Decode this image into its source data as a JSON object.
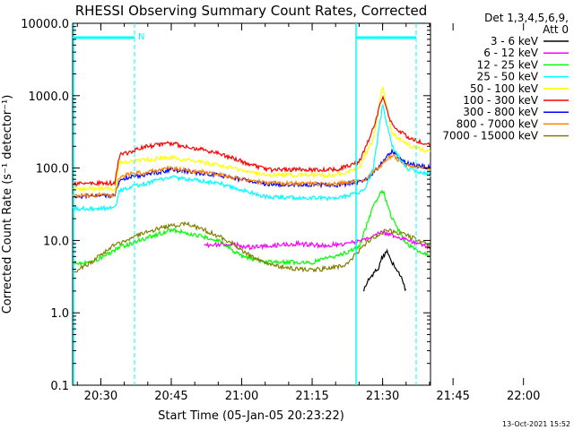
{
  "chart_data": {
    "type": "line",
    "title": "RHESSI Observing Summary Count Rates, Corrected",
    "xlabel": "Start Time (05-Jan-05 20:23:22)",
    "ylabel": "Corrected Count Rate (s⁻¹ detector⁻¹)",
    "yscale": "log",
    "ylim": [
      0.1,
      10000
    ],
    "xlim_minutes": [
      20.4,
      21.67
    ],
    "x_ticks": [
      {
        "label": "20:30",
        "value": 30
      },
      {
        "label": "20:45",
        "value": 45
      },
      {
        "label": "21:00",
        "value": 60
      },
      {
        "label": "21:15",
        "value": 75
      },
      {
        "label": "21:30",
        "value": 90
      },
      {
        "label": "21:45",
        "value": 105
      },
      {
        "label": "22:00",
        "value": 120
      }
    ],
    "y_ticks": [
      {
        "label": "0.1",
        "value": 0.1
      },
      {
        "label": "1.0",
        "value": 1
      },
      {
        "label": "10.0",
        "value": 10
      },
      {
        "label": "100.0",
        "value": 100
      },
      {
        "label": "1000.0",
        "value": 1000
      },
      {
        "label": "10000.0",
        "value": 10000
      }
    ],
    "legend_header": [
      "Det 1,3,4,5,6,9,",
      "Att 0"
    ],
    "legend_placement": "right",
    "series": [
      {
        "name": "3 - 6 keV",
        "color": "#000000"
      },
      {
        "name": "6 - 12 keV",
        "color": "#ff00ff"
      },
      {
        "name": "12 - 25 keV",
        "color": "#00ff00"
      },
      {
        "name": "25 - 50 keV",
        "color": "#00ffff"
      },
      {
        "name": "50 - 100 keV",
        "color": "#ffff00"
      },
      {
        "name": "100 - 300 keV",
        "color": "#ff0000"
      },
      {
        "name": "300 - 800 keV",
        "color": "#0000ff"
      },
      {
        "name": "800 - 7000 keV",
        "color": "#ff8000"
      },
      {
        "name": "7000 - 15000 keV",
        "color": "#808000"
      }
    ],
    "main_series": [
      {
        "color": "#ffff00",
        "points": [
          [
            20.4,
            52
          ],
          [
            33,
            52
          ],
          [
            34,
            120
          ],
          [
            45,
            140
          ],
          [
            55,
            110
          ],
          [
            65,
            80
          ],
          [
            80,
            80
          ],
          [
            85,
            100
          ],
          [
            88,
            250
          ],
          [
            90,
            1400
          ],
          [
            92,
            300
          ],
          [
            96,
            200
          ],
          [
            103,
            150
          ],
          [
            106,
            65
          ],
          [
            108,
            58
          ],
          [
            120,
            58
          ]
        ]
      },
      {
        "color": "#ff0000",
        "points": [
          [
            20.4,
            60
          ],
          [
            33,
            62
          ],
          [
            34,
            150
          ],
          [
            40,
            200
          ],
          [
            45,
            220
          ],
          [
            55,
            160
          ],
          [
            65,
            95
          ],
          [
            80,
            95
          ],
          [
            85,
            120
          ],
          [
            88,
            350
          ],
          [
            90,
            950
          ],
          [
            92,
            400
          ],
          [
            96,
            250
          ],
          [
            103,
            190
          ],
          [
            106,
            75
          ],
          [
            108,
            65
          ],
          [
            120,
            65
          ]
        ]
      },
      {
        "color": "#0000ff",
        "points": [
          [
            20.4,
            40
          ],
          [
            33,
            42
          ],
          [
            34,
            70
          ],
          [
            45,
            95
          ],
          [
            55,
            80
          ],
          [
            65,
            60
          ],
          [
            80,
            58
          ],
          [
            86,
            65
          ],
          [
            89,
            100
          ],
          [
            92,
            170
          ],
          [
            95,
            115
          ],
          [
            103,
            95
          ],
          [
            106,
            45
          ],
          [
            120,
            42
          ]
        ]
      },
      {
        "color": "#ff8000",
        "points": [
          [
            20.4,
            42
          ],
          [
            33,
            42
          ],
          [
            34,
            78
          ],
          [
            45,
            100
          ],
          [
            55,
            82
          ],
          [
            65,
            62
          ],
          [
            80,
            60
          ],
          [
            86,
            68
          ],
          [
            89,
            100
          ],
          [
            92,
            150
          ],
          [
            95,
            110
          ],
          [
            103,
            90
          ],
          [
            106,
            45
          ],
          [
            120,
            44
          ]
        ]
      },
      {
        "color": "#00ffff",
        "points": [
          [
            20.4,
            27
          ],
          [
            33,
            28
          ],
          [
            34,
            50
          ],
          [
            45,
            75
          ],
          [
            55,
            62
          ],
          [
            65,
            40
          ],
          [
            80,
            38
          ],
          [
            86,
            48
          ],
          [
            88,
            100
          ],
          [
            90,
            740
          ],
          [
            92,
            200
          ],
          [
            95,
            100
          ],
          [
            102,
            75
          ],
          [
            104,
            55
          ],
          [
            106,
            25
          ],
          [
            120,
            27
          ]
        ]
      },
      {
        "color": "#00ff00",
        "points": [
          [
            20.4,
            4.8
          ],
          [
            28,
            5
          ],
          [
            34,
            8
          ],
          [
            40,
            11
          ],
          [
            45,
            14
          ],
          [
            50,
            12
          ],
          [
            55,
            10
          ],
          [
            60,
            6
          ],
          [
            65,
            5
          ],
          [
            75,
            5
          ],
          [
            80,
            6
          ],
          [
            85,
            8
          ],
          [
            88,
            30
          ],
          [
            90,
            50
          ],
          [
            92,
            20
          ],
          [
            95,
            9
          ],
          [
            100,
            6
          ],
          [
            103,
            4
          ],
          [
            106,
            3.5
          ],
          [
            120,
            3.5
          ]
        ]
      },
      {
        "color": "#ff00ff",
        "points": [
          [
            52,
            8.5
          ],
          [
            57,
            9
          ],
          [
            62,
            8
          ],
          [
            67,
            8.5
          ],
          [
            72,
            9
          ],
          [
            77,
            8.5
          ],
          [
            82,
            9
          ],
          [
            86,
            10
          ],
          [
            89,
            13
          ],
          [
            92,
            12
          ],
          [
            96,
            10
          ],
          [
            100,
            8
          ]
        ]
      },
      {
        "color": "#808000",
        "points": [
          [
            20.4,
            3
          ],
          [
            24,
            3.5
          ],
          [
            28,
            5
          ],
          [
            32,
            8
          ],
          [
            38,
            12
          ],
          [
            43,
            15
          ],
          [
            48,
            17
          ],
          [
            52,
            14
          ],
          [
            57,
            10
          ],
          [
            62,
            6
          ],
          [
            67,
            4.5
          ],
          [
            72,
            4
          ],
          [
            77,
            4
          ],
          [
            82,
            4.5
          ],
          [
            87,
            10
          ],
          [
            91,
            14
          ],
          [
            95,
            12
          ],
          [
            99,
            9
          ],
          [
            102,
            6
          ],
          [
            105,
            4
          ],
          [
            110,
            3.8
          ],
          [
            120,
            3.8
          ]
        ]
      },
      {
        "color": "#000000",
        "points": [
          [
            86,
            2
          ],
          [
            87,
            3
          ],
          [
            89,
            4
          ],
          [
            90,
            6
          ],
          [
            91,
            7
          ],
          [
            92,
            5
          ],
          [
            93,
            4
          ],
          [
            94,
            3
          ],
          [
            95,
            2
          ]
        ]
      }
    ],
    "flag_marker_label": "N",
    "axis_color": "#000000",
    "marker_color": "#00ffff",
    "footer_timestamp": "13-Oct-2021 15:52"
  }
}
